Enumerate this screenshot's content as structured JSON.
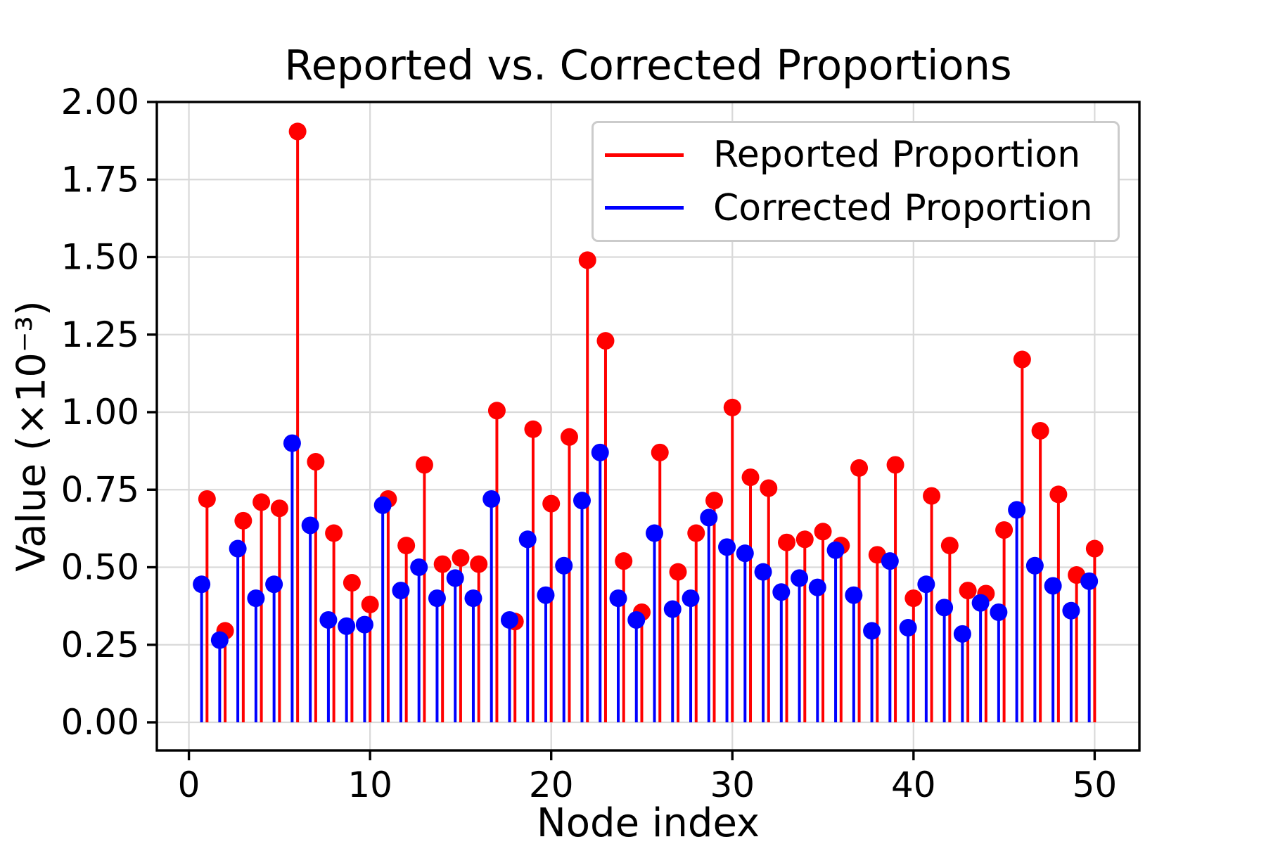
{
  "figure": {
    "background": "#ffffff"
  },
  "chart_data": {
    "type": "stem",
    "title": "Reported vs. Corrected Proportions",
    "xlabel": "Node index",
    "ylabel": "Value (×10⁻³)",
    "value_units": "×10⁻³",
    "grid": true,
    "grid_color": "#d9d9d9",
    "legend_position": "upper right",
    "xlim": [
      -1.77,
      52.47
    ],
    "ylim": [
      -0.0907,
      2.0
    ],
    "x_ticks": [
      0,
      10,
      20,
      30,
      40,
      50
    ],
    "y_ticks": [
      "0.00",
      "0.25",
      "0.50",
      "0.75",
      "1.00",
      "1.25",
      "1.50",
      "1.75",
      "2.00"
    ],
    "x": [
      1,
      2,
      3,
      4,
      5,
      6,
      7,
      8,
      9,
      10,
      11,
      12,
      13,
      14,
      15,
      16,
      17,
      18,
      19,
      20,
      21,
      22,
      23,
      24,
      25,
      26,
      27,
      28,
      29,
      30,
      31,
      32,
      33,
      34,
      35,
      36,
      37,
      38,
      39,
      40,
      41,
      42,
      43,
      44,
      45,
      46,
      47,
      48,
      49,
      50
    ],
    "series": [
      {
        "name": "Reported Proportion",
        "color": "#ff0000",
        "x_offset": 0,
        "values": [
          0.72,
          0.295,
          0.65,
          0.71,
          0.69,
          1.905,
          0.84,
          0.61,
          0.45,
          0.38,
          0.72,
          0.57,
          0.83,
          0.51,
          0.53,
          0.51,
          1.005,
          0.325,
          0.945,
          0.705,
          0.92,
          1.49,
          1.23,
          0.52,
          0.355,
          0.87,
          0.485,
          0.61,
          0.715,
          1.015,
          0.79,
          0.755,
          0.58,
          0.59,
          0.615,
          0.57,
          0.82,
          0.54,
          0.83,
          0.4,
          0.73,
          0.57,
          0.425,
          0.415,
          0.62,
          1.17,
          0.94,
          0.735,
          0.475,
          0.56
        ]
      },
      {
        "name": "Corrected Proportion",
        "color": "#0000ff",
        "x_offset": -0.3,
        "values": [
          0.445,
          0.265,
          0.56,
          0.4,
          0.445,
          0.9,
          0.635,
          0.33,
          0.31,
          0.315,
          0.7,
          0.425,
          0.5,
          0.4,
          0.465,
          0.4,
          0.72,
          0.33,
          0.59,
          0.41,
          0.505,
          0.715,
          0.87,
          0.4,
          0.33,
          0.61,
          0.365,
          0.4,
          0.66,
          0.565,
          0.545,
          0.485,
          0.42,
          0.465,
          0.435,
          0.555,
          0.41,
          0.295,
          0.52,
          0.305,
          0.445,
          0.37,
          0.285,
          0.385,
          0.355,
          0.685,
          0.505,
          0.44,
          0.36,
          0.455
        ]
      }
    ]
  }
}
